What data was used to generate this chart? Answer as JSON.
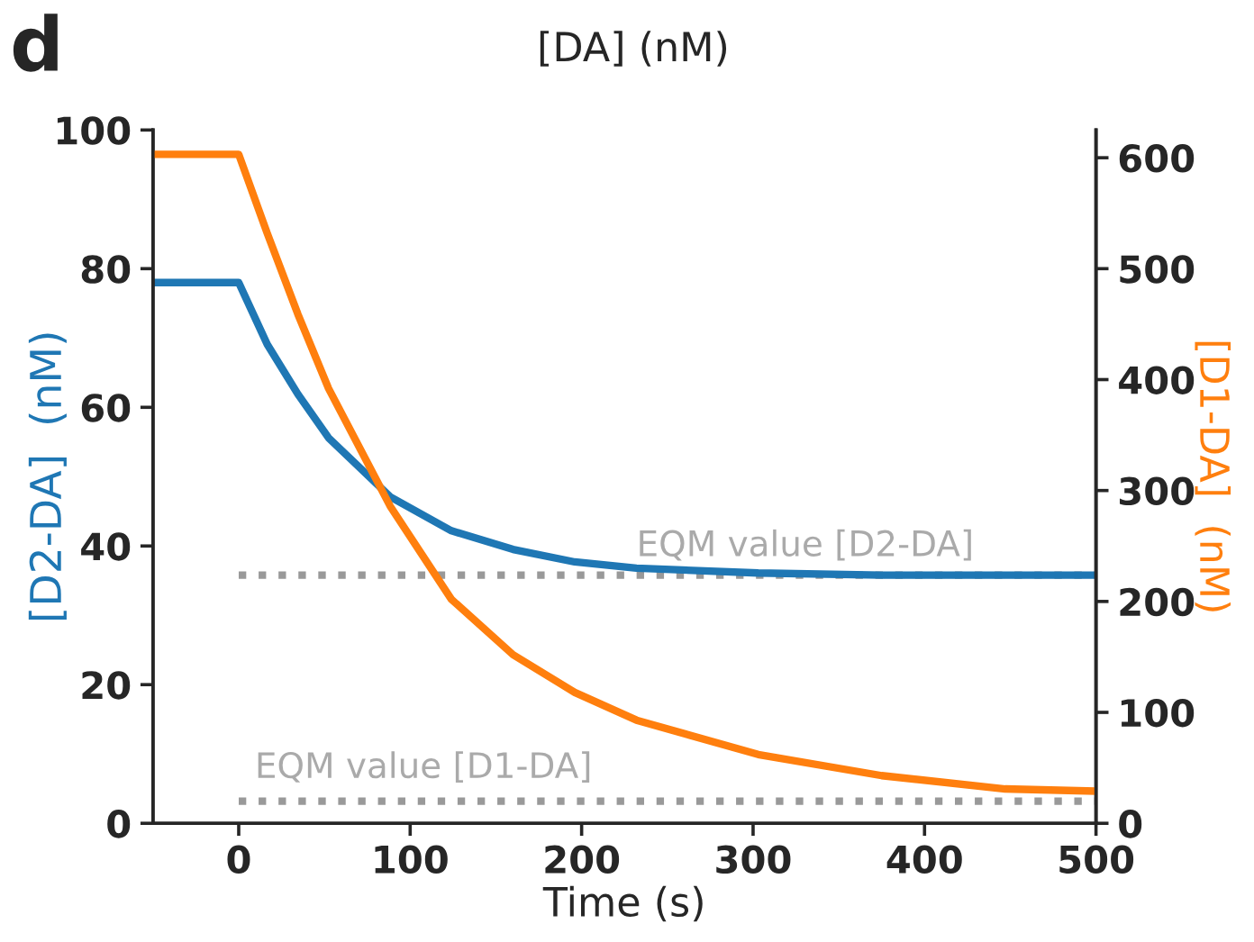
{
  "chart_data": {
    "type": "line",
    "xlabel": "Time (s)",
    "ylabel": "[D2-DA]  (nM)",
    "y2label": "[D1-DA]  (nM)",
    "xlim": [
      -50,
      500
    ],
    "xticks": [
      0,
      100,
      200,
      300,
      400,
      500
    ],
    "ylim": [
      0,
      100
    ],
    "yticks": [
      0,
      20,
      40,
      60,
      80,
      100
    ],
    "y2lim": [
      0,
      625
    ],
    "y2ticks": [
      0,
      100,
      200,
      300,
      400,
      500,
      600
    ],
    "grid": false,
    "marker": "none",
    "series": [
      {
        "color": "#999999",
        "line_style": "dotted",
        "x": [
          0,
          500
        ],
        "values": [
          35.8,
          35.8
        ]
      },
      {
        "color": "#999999",
        "line_style": "dotted",
        "axis": "y2",
        "x": [
          0,
          500
        ],
        "values": [
          20,
          20
        ]
      },
      {
        "color": "#1f77b4",
        "line_style": "solid",
        "x": [
          -50,
          0,
          16.6,
          34.5,
          52.4,
          88.3,
          124,
          160,
          196,
          232,
          303,
          375,
          500
        ],
        "values": [
          78,
          78,
          69.1,
          61.9,
          55.6,
          47.1,
          42.2,
          39.5,
          37.7,
          36.8,
          36.1,
          35.8,
          35.8
        ]
      },
      {
        "color": "#ff7f0e",
        "line_style": "solid",
        "axis": "y2",
        "x": [
          -50,
          0,
          16.6,
          34.5,
          52.4,
          88.3,
          124,
          160,
          196,
          232,
          303,
          375,
          447,
          500
        ],
        "values": [
          603,
          603,
          532,
          459,
          392,
          286,
          202,
          152,
          118,
          93,
          62,
          43,
          31,
          29
        ]
      }
    ],
    "annotations": [
      {
        "text": "EQM value [D2-DA]",
        "x": 232,
        "y": 37.5
      },
      "EQM value [D1-DA]",
      "d",
      "[DA] (nM)"
    ]
  }
}
